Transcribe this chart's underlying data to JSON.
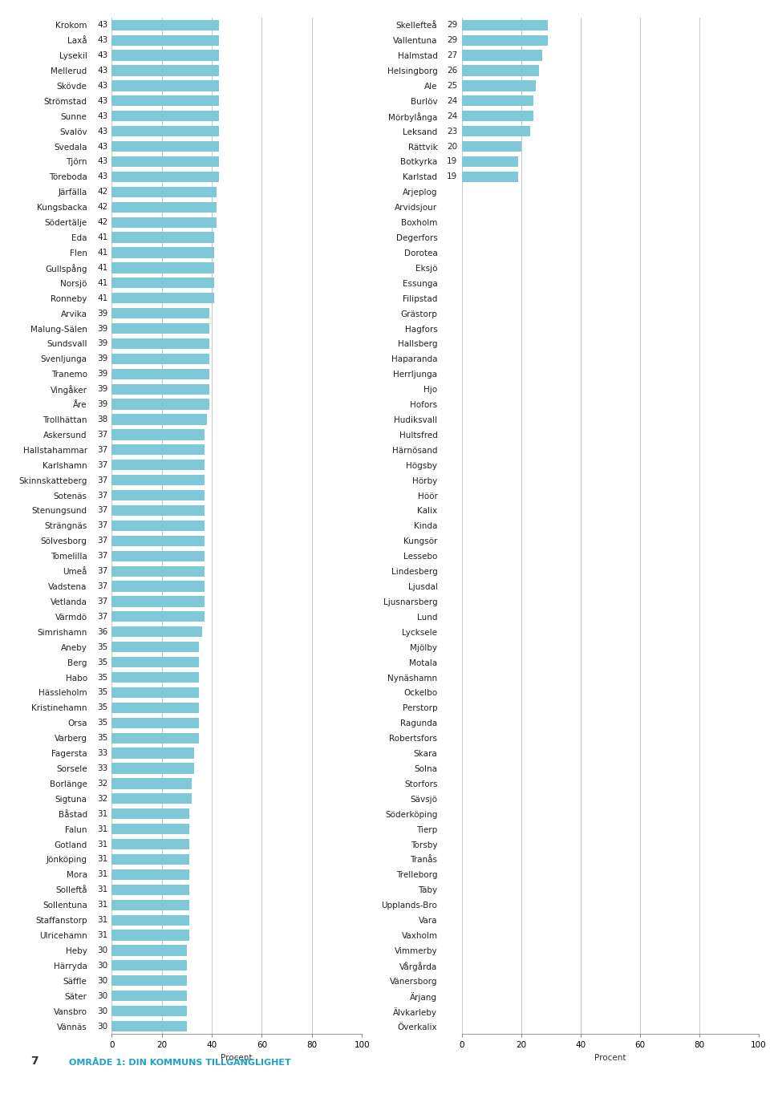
{
  "left_data": [
    [
      "Krokom",
      43
    ],
    [
      "Laxå",
      43
    ],
    [
      "Lysekil",
      43
    ],
    [
      "Mellerud",
      43
    ],
    [
      "Skövde",
      43
    ],
    [
      "Strömstad",
      43
    ],
    [
      "Sunne",
      43
    ],
    [
      "Svalöv",
      43
    ],
    [
      "Svedala",
      43
    ],
    [
      "Tjörn",
      43
    ],
    [
      "Töreboda",
      43
    ],
    [
      "Järfälla",
      42
    ],
    [
      "Kungsbacka",
      42
    ],
    [
      "Södertälje",
      42
    ],
    [
      "Eda",
      41
    ],
    [
      "Flen",
      41
    ],
    [
      "Gullspång",
      41
    ],
    [
      "Norsjö",
      41
    ],
    [
      "Ronneby",
      41
    ],
    [
      "Arvika",
      39
    ],
    [
      "Malung-Sälen",
      39
    ],
    [
      "Sundsvall",
      39
    ],
    [
      "Svenljunga",
      39
    ],
    [
      "Tranemo",
      39
    ],
    [
      "Vingåker",
      39
    ],
    [
      "Åre",
      39
    ],
    [
      "Trollhättan",
      38
    ],
    [
      "Askersund",
      37
    ],
    [
      "Hallstahammar",
      37
    ],
    [
      "Karlshamn",
      37
    ],
    [
      "Skinnskatteberg",
      37
    ],
    [
      "Sotenäs",
      37
    ],
    [
      "Stenungsund",
      37
    ],
    [
      "Strängnäs",
      37
    ],
    [
      "Sölvesborg",
      37
    ],
    [
      "Tomelilla",
      37
    ],
    [
      "Umeå",
      37
    ],
    [
      "Vadstena",
      37
    ],
    [
      "Vetlanda",
      37
    ],
    [
      "Värmdö",
      37
    ],
    [
      "Simrishamn",
      36
    ],
    [
      "Aneby",
      35
    ],
    [
      "Berg",
      35
    ],
    [
      "Habo",
      35
    ],
    [
      "Hässleholm",
      35
    ],
    [
      "Kristinehamn",
      35
    ],
    [
      "Orsa",
      35
    ],
    [
      "Varberg",
      35
    ],
    [
      "Fagersta",
      33
    ],
    [
      "Sorsele",
      33
    ],
    [
      "Borlänge",
      32
    ],
    [
      "Sigtuna",
      32
    ],
    [
      "Båstad",
      31
    ],
    [
      "Falun",
      31
    ],
    [
      "Gotland",
      31
    ],
    [
      "Jönköping",
      31
    ],
    [
      "Mora",
      31
    ],
    [
      "Solleftå",
      31
    ],
    [
      "Sollentuna",
      31
    ],
    [
      "Staffanstorp",
      31
    ],
    [
      "Ulricehamn",
      31
    ],
    [
      "Heby",
      30
    ],
    [
      "Härryda",
      30
    ],
    [
      "Säffle",
      30
    ],
    [
      "Säter",
      30
    ],
    [
      "Vansbro",
      30
    ],
    [
      "Vännäs",
      30
    ]
  ],
  "right_data": [
    [
      "Skellefteå",
      29
    ],
    [
      "Vallentuna",
      29
    ],
    [
      "Halmstad",
      27
    ],
    [
      "Helsingborg",
      26
    ],
    [
      "Ale",
      25
    ],
    [
      "Burlöv",
      24
    ],
    [
      "Mörbylånga",
      24
    ],
    [
      "Leksand",
      23
    ],
    [
      "Rättvik",
      20
    ],
    [
      "Botkyrka",
      19
    ],
    [
      "Karlstad",
      19
    ],
    [
      "Arjeplog",
      0
    ],
    [
      "Arvidsjour",
      0
    ],
    [
      "Boxholm",
      0
    ],
    [
      "Degerfors",
      0
    ],
    [
      "Dorotea",
      0
    ],
    [
      "Eksjö",
      0
    ],
    [
      "Essunga",
      0
    ],
    [
      "Filipstad",
      0
    ],
    [
      "Grästorp",
      0
    ],
    [
      "Hagfors",
      0
    ],
    [
      "Hallsberg",
      0
    ],
    [
      "Haparanda",
      0
    ],
    [
      "Herrljunga",
      0
    ],
    [
      "Hjo",
      0
    ],
    [
      "Hofors",
      0
    ],
    [
      "Hudiksvall",
      0
    ],
    [
      "Hultsfred",
      0
    ],
    [
      "Härnösand",
      0
    ],
    [
      "Högsby",
      0
    ],
    [
      "Hörby",
      0
    ],
    [
      "Höör",
      0
    ],
    [
      "Kalix",
      0
    ],
    [
      "Kinda",
      0
    ],
    [
      "Kungsör",
      0
    ],
    [
      "Lessebo",
      0
    ],
    [
      "Lindesberg",
      0
    ],
    [
      "Ljusdal",
      0
    ],
    [
      "Ljusnarsberg",
      0
    ],
    [
      "Lund",
      0
    ],
    [
      "Lycksele",
      0
    ],
    [
      "Mjölby",
      0
    ],
    [
      "Motala",
      0
    ],
    [
      "Nynäshamn",
      0
    ],
    [
      "Ockelbo",
      0
    ],
    [
      "Perstorp",
      0
    ],
    [
      "Ragunda",
      0
    ],
    [
      "Robertsfors",
      0
    ],
    [
      "Skara",
      0
    ],
    [
      "Solna",
      0
    ],
    [
      "Storfors",
      0
    ],
    [
      "Sävsjö",
      0
    ],
    [
      "Söderköping",
      0
    ],
    [
      "Tierp",
      0
    ],
    [
      "Torsby",
      0
    ],
    [
      "Tranås",
      0
    ],
    [
      "Trelleborg",
      0
    ],
    [
      "Täby",
      0
    ],
    [
      "Upplands-Bro",
      0
    ],
    [
      "Vara",
      0
    ],
    [
      "Vaxholm",
      0
    ],
    [
      "Vimmerby",
      0
    ],
    [
      "Vårgårda",
      0
    ],
    [
      "Vänersborg",
      0
    ],
    [
      "Ärjang",
      0
    ],
    [
      "Älvkarleby",
      0
    ],
    [
      "Överkalix",
      0
    ]
  ],
  "bar_color": "#7ec8d8",
  "xlabel": "Procent",
  "xlim": [
    0,
    100
  ],
  "grid_color": "#bbbbbb",
  "bg_color": "#ffffff",
  "font_size": 7.5,
  "title_number": "7",
  "title_text": "OMRADE 1: DIN KOMMUNS TILLGÄNGLIGHET",
  "title_color": "#1fa0c8"
}
